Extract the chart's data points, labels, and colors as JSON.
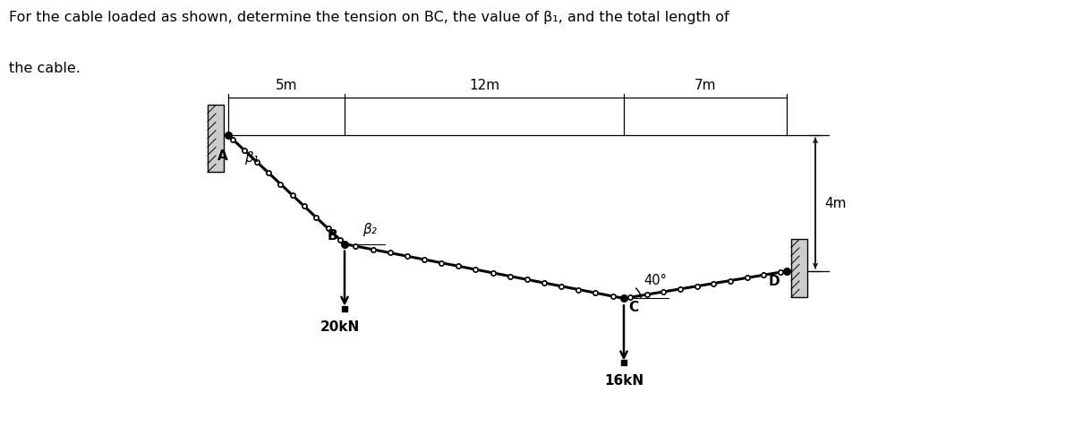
{
  "title_line1": "For the cable loaded as shown, determine the tension on BC, the value of β₁, and the total length of",
  "title_line2": "the cable.",
  "bg_color": "#ffffff",
  "label_A": "A",
  "label_B": "B",
  "label_C": "C",
  "label_D": "D",
  "label_beta1": "β₁",
  "label_beta2": "β₂",
  "label_40deg": "40°",
  "load_B": "20kN",
  "load_C": "16kN",
  "dim_5m": "5m",
  "dim_12m": "12m",
  "dim_7m": "7m",
  "dim_4m": "4m",
  "title_fontsize": 11.5,
  "label_fontsize": 11,
  "dim_fontsize": 11
}
